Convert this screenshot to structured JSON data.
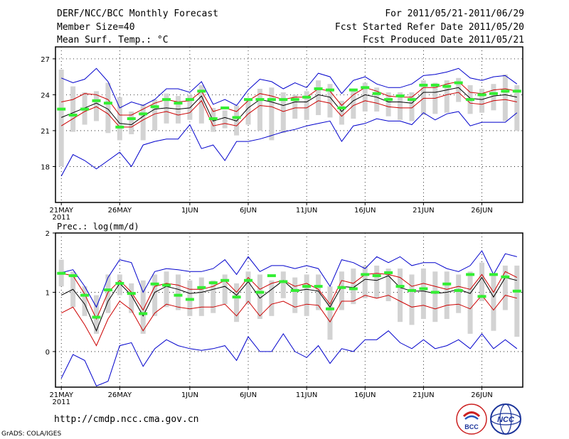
{
  "header": {
    "title": "DERF/NCC/BCC Monthly Forecast",
    "member_size": "Member Size=40",
    "variable": "Mean Surf. Temp.: °C",
    "forecast_period": "For 2011/05/21-2011/06/29",
    "started_refer": "Fcst Started Refer Date 2011/05/20",
    "produced": "Fcst Produced Date 2011/05/21"
  },
  "footer": {
    "url": "http://cmdp.ncc.cma.gov.cn",
    "grads_credit": "GrADS: COLA/IGES",
    "logo_bcc_text": "BCC",
    "logo_ncc_text": "NCC"
  },
  "colors": {
    "mean": "#000000",
    "envelope_outer": "#0000cc",
    "envelope_inner": "#cc0000",
    "median_marker": "#33ee33",
    "box": "#d3d3d3"
  },
  "chart_data": [
    {
      "type": "line",
      "title": "Mean Surf. Temp.: °C",
      "ylim": [
        15,
        28
      ],
      "yticks": [
        18,
        21,
        24,
        27
      ],
      "xlim": [
        0.5,
        40.5
      ],
      "xticks": [
        {
          "day": 1,
          "label": "21MAY",
          "sub": "2011"
        },
        {
          "day": 6,
          "label": "26MAY"
        },
        {
          "day": 12,
          "label": "1JUN"
        },
        {
          "day": 17,
          "label": "6JUN"
        },
        {
          "day": 22,
          "label": "11JUN"
        },
        {
          "day": 27,
          "label": "16JUN"
        },
        {
          "day": 32,
          "label": "21JUN"
        },
        {
          "day": 37,
          "label": "26JUN"
        }
      ],
      "blue_max": [
        25.4,
        25.0,
        25.3,
        26.2,
        25.1,
        22.9,
        23.4,
        23.1,
        23.6,
        24.5,
        24.5,
        24.2,
        25.1,
        23.2,
        23.6,
        23.1,
        24.4,
        25.3,
        25.1,
        24.5,
        25.0,
        24.6,
        25.8,
        25.5,
        24.1,
        25.2,
        25.5,
        24.9,
        24.6,
        24.6,
        24.9,
        25.6,
        25.7,
        25.9,
        26.2,
        25.4,
        25.2,
        25.5,
        25.6,
        24.9
      ],
      "red_upper": [
        23.4,
        23.6,
        24.1,
        24.0,
        23.6,
        22.3,
        22.3,
        22.8,
        23.3,
        23.6,
        23.4,
        23.5,
        24.3,
        22.6,
        22.9,
        22.6,
        23.5,
        24.1,
        23.9,
        23.6,
        23.8,
        23.8,
        24.5,
        24.3,
        23.1,
        24.0,
        24.6,
        24.3,
        23.9,
        23.8,
        23.8,
        24.6,
        24.6,
        24.9,
        25.1,
        24.2,
        24.1,
        24.4,
        24.5,
        24.3
      ],
      "mean": [
        22.1,
        22.5,
        22.9,
        23.3,
        22.8,
        21.6,
        21.5,
        22.2,
        22.8,
        22.9,
        22.8,
        22.9,
        23.9,
        21.8,
        22.1,
        21.8,
        22.9,
        23.6,
        23.4,
        23.1,
        23.4,
        23.4,
        24.0,
        23.8,
        22.6,
        23.5,
        24.0,
        23.8,
        23.4,
        23.4,
        23.3,
        24.2,
        24.2,
        24.4,
        24.6,
        23.7,
        23.6,
        23.9,
        24.0,
        23.8
      ],
      "red_lower": [
        21.4,
        22.0,
        22.6,
        23.0,
        22.4,
        21.3,
        21.3,
        21.9,
        22.4,
        22.6,
        22.3,
        22.5,
        23.5,
        21.4,
        21.6,
        21.4,
        22.4,
        23.1,
        23.0,
        22.6,
        22.9,
        22.9,
        23.5,
        23.3,
        22.2,
        23.1,
        23.5,
        23.3,
        23.0,
        22.9,
        22.9,
        23.7,
        23.7,
        24.0,
        24.2,
        23.3,
        23.2,
        23.5,
        23.6,
        23.4
      ],
      "blue_min": [
        17.2,
        19.0,
        18.5,
        17.8,
        18.5,
        19.2,
        18.0,
        19.8,
        20.1,
        20.3,
        20.3,
        21.5,
        19.5,
        19.8,
        18.5,
        20.1,
        20.1,
        20.3,
        20.6,
        20.9,
        21.1,
        21.4,
        21.6,
        21.8,
        20.1,
        21.4,
        21.6,
        22.0,
        21.8,
        21.8,
        21.5,
        22.5,
        21.9,
        22.4,
        22.6,
        21.4,
        21.7,
        21.7,
        21.7,
        22.5
      ],
      "box_top": [
        26.1,
        24.7,
        24.2,
        24.3,
        25.0,
        23.8,
        22.6,
        23.2,
        23.6,
        24.1,
        23.9,
        24.0,
        24.8,
        22.9,
        22.7,
        23.1,
        23.6,
        24.5,
        24.6,
        24.2,
        24.0,
        24.3,
        25.2,
        24.9,
        23.5,
        24.3,
        25.0,
        24.6,
        24.2,
        24.2,
        24.2,
        25.2,
        25.0,
        25.2,
        25.4,
        24.8,
        24.5,
        24.9,
        25.7,
        24.8
      ],
      "box_bottom": [
        18.0,
        20.9,
        21.5,
        21.8,
        20.8,
        20.2,
        20.7,
        20.2,
        21.0,
        21.6,
        21.6,
        21.9,
        21.6,
        20.9,
        21.2,
        20.6,
        21.5,
        21.0,
        20.2,
        20.8,
        22.0,
        21.9,
        22.3,
        22.1,
        21.5,
        22.0,
        22.6,
        22.6,
        22.2,
        21.9,
        21.8,
        22.3,
        22.4,
        22.5,
        23.4,
        22.4,
        22.5,
        22.7,
        21.8,
        21.0
      ],
      "median": [
        22.8,
        22.3,
        22.8,
        23.5,
        23.3,
        21.3,
        22.0,
        22.4,
        23.0,
        23.6,
        23.3,
        23.6,
        24.3,
        22.0,
        22.9,
        22.1,
        23.6,
        23.6,
        23.6,
        23.6,
        23.6,
        23.8,
        24.5,
        24.4,
        22.9,
        24.4,
        24.6,
        24.1,
        23.6,
        23.9,
        23.6,
        24.8,
        24.8,
        24.7,
        25.0,
        23.6,
        24.0,
        24.1,
        24.3,
        24.3
      ]
    },
    {
      "type": "line",
      "title": "Prec.: log(mm/d)",
      "ylim": [
        -0.6,
        2
      ],
      "yticks": [
        0,
        1,
        2
      ],
      "xlim": [
        0.5,
        40.5
      ],
      "xticks": [
        {
          "day": 1,
          "label": "21MAY",
          "sub": "2011"
        },
        {
          "day": 6,
          "label": "26MAY"
        },
        {
          "day": 12,
          "label": "1JUN"
        },
        {
          "day": 17,
          "label": "6JUN"
        },
        {
          "day": 22,
          "label": "11JUN"
        },
        {
          "day": 27,
          "label": "16JUN"
        },
        {
          "day": 32,
          "label": "21JUN"
        },
        {
          "day": 37,
          "label": "26JUN"
        }
      ],
      "blue_max": [
        1.33,
        1.38,
        1.1,
        0.75,
        1.25,
        1.55,
        1.5,
        1.0,
        1.35,
        1.4,
        1.38,
        1.35,
        1.35,
        1.4,
        1.55,
        1.3,
        1.6,
        1.35,
        1.45,
        1.45,
        1.4,
        1.45,
        1.4,
        1.1,
        1.55,
        1.5,
        1.4,
        1.6,
        1.5,
        1.6,
        1.45,
        1.5,
        1.5,
        1.4,
        1.35,
        1.45,
        1.7,
        1.3,
        1.65,
        1.6
      ],
      "red_upper": [
        1.32,
        1.28,
        0.97,
        0.55,
        1.0,
        1.2,
        1.0,
        0.7,
        1.1,
        1.15,
        1.12,
        1.05,
        1.05,
        1.1,
        1.2,
        1.0,
        1.25,
        1.05,
        1.15,
        1.2,
        1.1,
        1.15,
        1.05,
        0.8,
        1.2,
        1.15,
        1.3,
        1.32,
        1.3,
        1.25,
        1.1,
        1.15,
        1.1,
        1.05,
        1.1,
        1.05,
        1.3,
        1.0,
        1.35,
        1.25
      ],
      "mean": [
        0.95,
        1.05,
        0.8,
        0.35,
        0.85,
        1.15,
        0.95,
        0.6,
        1.0,
        1.1,
        1.05,
        0.98,
        1.0,
        1.05,
        1.1,
        0.95,
        1.18,
        0.9,
        1.05,
        1.2,
        1.02,
        1.05,
        1.02,
        0.75,
        1.1,
        1.08,
        1.22,
        1.2,
        1.28,
        1.08,
        1.02,
        1.02,
        0.98,
        1.0,
        1.05,
        0.98,
        1.25,
        0.92,
        1.25,
        1.2
      ],
      "red_lower": [
        0.65,
        0.75,
        0.45,
        0.1,
        0.55,
        0.85,
        0.7,
        0.35,
        0.65,
        0.8,
        0.75,
        0.72,
        0.75,
        0.75,
        0.8,
        0.6,
        0.85,
        0.6,
        0.8,
        0.85,
        0.75,
        0.8,
        0.78,
        0.5,
        0.85,
        0.85,
        0.95,
        0.9,
        0.95,
        0.85,
        0.75,
        0.78,
        0.72,
        0.78,
        0.8,
        0.72,
        0.95,
        0.7,
        0.95,
        0.9
      ],
      "blue_min": [
        -0.45,
        -0.05,
        -0.15,
        -0.58,
        -0.5,
        0.1,
        0.15,
        -0.25,
        0.05,
        0.2,
        0.1,
        0.05,
        0.02,
        0.05,
        0.1,
        -0.15,
        0.25,
        0.0,
        0.0,
        0.3,
        0.0,
        -0.1,
        0.1,
        -0.2,
        0.05,
        0.0,
        0.2,
        0.2,
        0.35,
        0.15,
        0.05,
        0.2,
        0.05,
        0.1,
        0.2,
        0.05,
        0.3,
        0.05,
        0.2,
        0.05
      ],
      "box_top": [
        1.55,
        1.35,
        1.1,
        0.95,
        1.3,
        1.3,
        1.15,
        1.2,
        1.3,
        1.35,
        1.3,
        1.2,
        1.25,
        1.2,
        1.3,
        1.15,
        1.35,
        1.3,
        1.2,
        1.35,
        1.25,
        1.3,
        1.3,
        1.1,
        1.35,
        1.4,
        1.45,
        1.45,
        1.4,
        1.4,
        1.3,
        1.4,
        1.35,
        1.35,
        1.3,
        1.35,
        1.5,
        1.3,
        1.45,
        1.45
      ],
      "box_bottom": [
        1.1,
        0.75,
        0.6,
        0.3,
        0.65,
        0.95,
        0.65,
        0.3,
        0.6,
        0.75,
        0.7,
        0.6,
        0.6,
        0.65,
        0.8,
        0.5,
        0.8,
        0.55,
        0.6,
        0.9,
        0.65,
        0.6,
        0.7,
        0.2,
        0.7,
        0.8,
        0.9,
        0.9,
        0.85,
        0.5,
        0.45,
        0.55,
        0.5,
        0.55,
        0.65,
        0.3,
        0.85,
        0.35,
        0.7,
        0.25
      ],
      "median": [
        1.32,
        1.28,
        0.95,
        0.58,
        1.04,
        1.15,
        0.98,
        0.64,
        1.14,
        1.12,
        0.95,
        0.88,
        1.08,
        1.16,
        1.2,
        0.92,
        1.2,
        1.0,
        1.28,
        1.18,
        1.03,
        1.1,
        1.1,
        0.72,
        1.08,
        1.06,
        1.3,
        1.28,
        1.33,
        1.1,
        1.03,
        1.06,
        1.0,
        1.14,
        1.03,
        1.3,
        0.93,
        1.3,
        1.26,
        1.02
      ]
    }
  ]
}
